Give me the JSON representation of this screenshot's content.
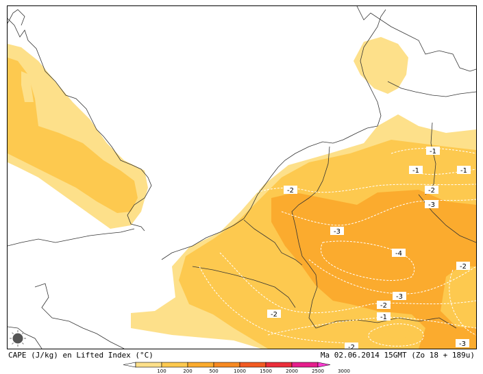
{
  "caption": {
    "left": "CAPE (J/kg) en Lifted Index (°C)",
    "right": "Ma 02.06.2014 15GMT (Zo 18 + 189u)"
  },
  "legend": {
    "ticks": [
      "100",
      "200",
      "500",
      "1000",
      "1500",
      "2000",
      "2500",
      "3000"
    ],
    "colors": [
      "#ffffff",
      "#fde08a",
      "#fdc94f",
      "#fbab2e",
      "#f78a22",
      "#f25b22",
      "#eb2e3a",
      "#e61e8c",
      "#ff3cd2"
    ]
  },
  "map": {
    "fill_colors": {
      "cape_100": "#fde08a",
      "cape_200": "#fdc94f",
      "cape_500": "#fbab2e"
    },
    "contour_labels": [
      {
        "id": "li-1-denmark",
        "text": "-1"
      },
      {
        "id": "li-1-germany-n",
        "text": "-1"
      },
      {
        "id": "li-1-east",
        "text": "-1"
      },
      {
        "id": "li-2-germany",
        "text": "-2"
      },
      {
        "id": "li-3-germany-e",
        "text": "-3"
      },
      {
        "id": "li-2-netherlands",
        "text": "-2"
      },
      {
        "id": "li-3-rhine",
        "text": "-3"
      },
      {
        "id": "li-4-center",
        "text": "-4"
      },
      {
        "id": "li-2-east",
        "text": "-2"
      },
      {
        "id": "li-3-south",
        "text": "-3"
      },
      {
        "id": "li-2-south",
        "text": "-2"
      },
      {
        "id": "li-1-south",
        "text": "-1"
      },
      {
        "id": "li-2-france",
        "text": "-2"
      },
      {
        "id": "li-2-alps",
        "text": "-2"
      },
      {
        "id": "li-3-se",
        "text": "-3"
      }
    ]
  }
}
